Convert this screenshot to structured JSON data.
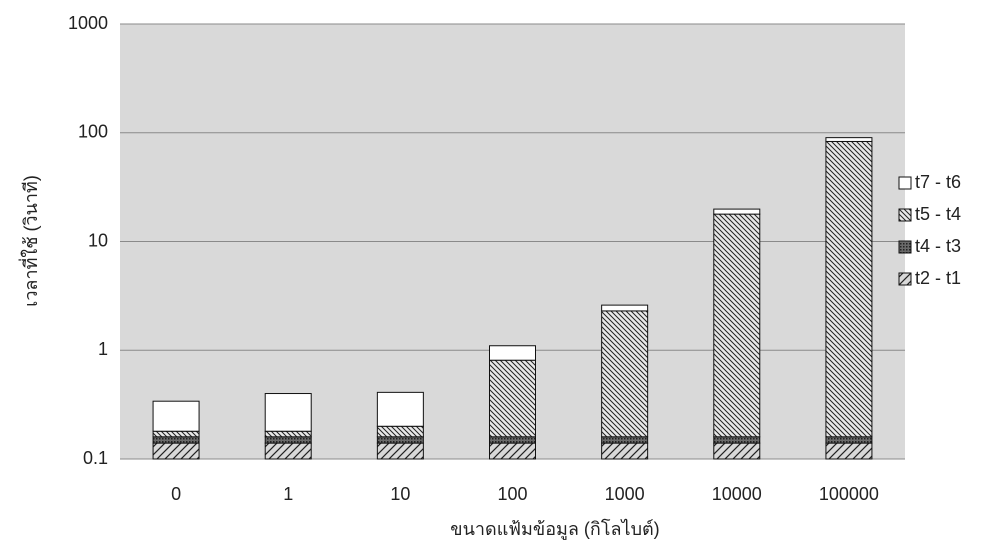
{
  "chart_data": {
    "type": "bar",
    "stacked": true,
    "log_scale": true,
    "grid": true,
    "legend": "right",
    "x_label": "ขนาดแฟ้มข้อมูล (กิโลไบต์)",
    "y_label": "เวลาที่ใช้ (วินาที)",
    "categories": [
      "0",
      "1",
      "10",
      "100",
      "1000",
      "10000",
      "100000"
    ],
    "series": [
      {
        "name": "t2 - t1",
        "color": "#d8d8d8",
        "values": [
          0.14,
          0.14,
          0.14,
          0.14,
          0.14,
          0.14,
          0.14
        ]
      },
      {
        "name": "t4 - t3",
        "color": "#6a6a6a",
        "values": [
          0.02,
          0.02,
          0.02,
          0.02,
          0.02,
          0.02,
          0.02
        ]
      },
      {
        "name": "t5 - t4",
        "color": "#e8e8e8",
        "values": [
          0.02,
          0.02,
          0.04,
          0.65,
          2.14,
          17.7,
          83
        ]
      },
      {
        "name": "t7 - t6",
        "color": "#ffffff",
        "values": [
          0.16,
          0.22,
          0.21,
          0.29,
          0.3,
          2,
          7
        ]
      }
    ],
    "ylim": [
      0.1,
      1000
    ],
    "yticks": [
      0.1,
      1,
      10,
      100,
      1000
    ]
  }
}
